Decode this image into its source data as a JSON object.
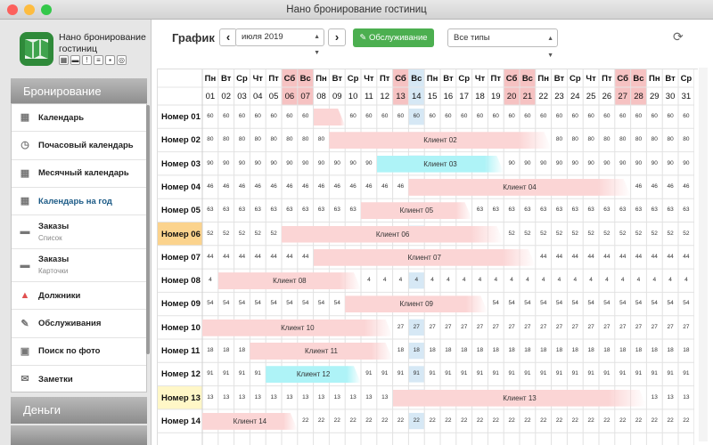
{
  "window_title": "Нано бронирование гостиниц",
  "app": {
    "name": "Нано бронирование гостиниц",
    "mini_icons": [
      "calendar-mini-icon",
      "truck-mini-icon",
      "warning-mini-icon",
      "clipboard-mini-icon",
      "lock-mini-icon",
      "database-mini-icon"
    ]
  },
  "sidebar": {
    "section_booking": "Бронирование",
    "section_money": "Деньги",
    "items": [
      {
        "label": "Календарь",
        "icon": "calendar-icon"
      },
      {
        "label": "Почасовый календарь",
        "icon": "clock-icon"
      },
      {
        "label": "Месячный календарь",
        "icon": "calendar-month-icon"
      },
      {
        "label": "Календарь на год",
        "icon": "calendar-year-icon",
        "active": true
      },
      {
        "label": "Заказы",
        "sub": "Список",
        "icon": "truck-icon"
      },
      {
        "label": "Заказы",
        "sub": "Карточки",
        "icon": "truck-icon"
      },
      {
        "label": "Должники",
        "icon": "warning-icon"
      },
      {
        "label": "Обслуживания",
        "icon": "wrench-icon"
      },
      {
        "label": "Поиск по фото",
        "icon": "photo-icon"
      },
      {
        "label": "Заметки",
        "icon": "notes-icon"
      }
    ]
  },
  "toolbar": {
    "title": "График",
    "prev": "‹",
    "next": "›",
    "month": "июля 2019",
    "service_button": "Обслуживание",
    "type_filter": "Все типы"
  },
  "colors": {
    "weekend": "#f6c2c2",
    "today": "#d6e8f5",
    "booking_pink": "#fbd5d5",
    "booking_cyan": "#aef3f7",
    "green": "#66cc66",
    "highlight_orange": "#fbd38d",
    "highlight_yellow": "#fff7c7"
  },
  "calendar": {
    "day_names": [
      "Пн",
      "Вт",
      "Ср",
      "Чт",
      "Пт",
      "Сб",
      "Вс",
      "Пн",
      "Вт",
      "Ср",
      "Чт",
      "Пт",
      "Сб",
      "Вс",
      "Пн",
      "Вт",
      "Ср",
      "Чт",
      "Пт",
      "Сб",
      "Вс",
      "Пн",
      "Вт",
      "Ср",
      "Чт",
      "Пт",
      "Сб",
      "Вс",
      "Пн",
      "Вт",
      "Ср"
    ],
    "day_numbers": [
      "01",
      "02",
      "03",
      "04",
      "05",
      "06",
      "07",
      "08",
      "09",
      "10",
      "11",
      "12",
      "13",
      "14",
      "15",
      "16",
      "17",
      "18",
      "19",
      "20",
      "21",
      "22",
      "23",
      "24",
      "25",
      "26",
      "27",
      "28",
      "29",
      "30",
      "31"
    ],
    "weekend_days": [
      6,
      7,
      13,
      20,
      21,
      27,
      28
    ],
    "today_day": 14,
    "rooms": [
      {
        "name": "Номер 01",
        "price": "60",
        "bookings": [
          {
            "label": "",
            "start": 8,
            "end": 9
          }
        ]
      },
      {
        "name": "Номер 02",
        "price": "80",
        "bookings": [
          {
            "label": "Клиент 02",
            "start": 9,
            "end": 22
          }
        ]
      },
      {
        "name": "Номер 03",
        "price": "90",
        "bookings": [
          {
            "label": "Клиент 03",
            "start": 12,
            "end": 19,
            "color": "cyan"
          }
        ]
      },
      {
        "name": "Номер 04",
        "price": "46",
        "bookings": [
          {
            "label": "Клиент 04",
            "start": 14,
            "end": 27
          }
        ]
      },
      {
        "name": "Номер 05",
        "price": "63",
        "bookings": [
          {
            "label": "Клиент 05",
            "start": 11,
            "end": 17
          }
        ]
      },
      {
        "name": "Номер 06",
        "price": "52",
        "highlight": "orange",
        "bookings": [
          {
            "label": "Клиент 06",
            "start": 6,
            "end": 19
          }
        ]
      },
      {
        "name": "Номер 07",
        "price": "44",
        "bookings": [
          {
            "label": "Клиент 07",
            "start": 8,
            "end": 21
          }
        ]
      },
      {
        "name": "Номер 08",
        "price": "4",
        "bookings": [
          {
            "label": "Клиент 08",
            "start": 2,
            "end": 10
          }
        ]
      },
      {
        "name": "Номер 09",
        "price": "54",
        "bookings": [
          {
            "label": "Клиент 09",
            "start": 10,
            "end": 18
          }
        ]
      },
      {
        "name": "Номер 10",
        "price": "27",
        "bookings": [
          {
            "label": "Клиент 10",
            "start": 1,
            "end": 12
          }
        ]
      },
      {
        "name": "Номер 11",
        "price": "18",
        "bookings": [
          {
            "label": "Клиент 11",
            "start": 4,
            "end": 12
          }
        ]
      },
      {
        "name": "Номер 12",
        "price": "91",
        "bookings": [
          {
            "label": "Клиент 12",
            "start": 5,
            "end": 10,
            "color": "cyan"
          }
        ]
      },
      {
        "name": "Номер 13",
        "price": "13",
        "highlight": "yellow",
        "bookings": [
          {
            "label": "Клиент 13",
            "start": 13,
            "end": 28
          }
        ]
      },
      {
        "name": "Номер 14",
        "price": "22",
        "bookings": [
          {
            "label": "Клиент 14",
            "start": 1,
            "end": 6
          }
        ]
      }
    ]
  }
}
